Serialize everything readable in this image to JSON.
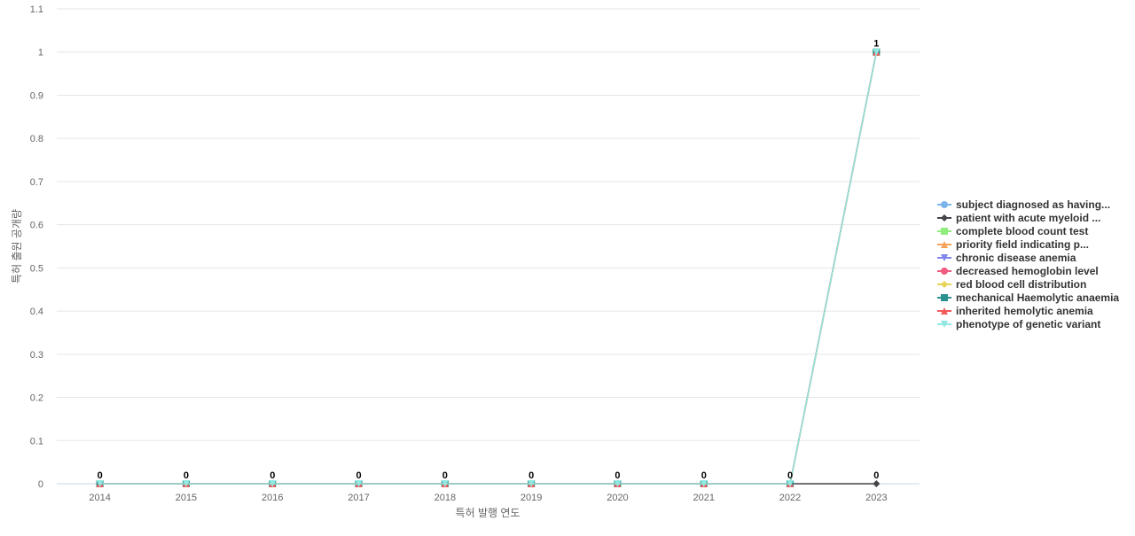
{
  "chart_data": {
    "type": "line",
    "xlabel": "특허 발행 연도",
    "ylabel": "특허 출원 공개량",
    "ylim": [
      0,
      1.1
    ],
    "yticks": [
      "0",
      "0.1",
      "0.2",
      "0.3",
      "0.4",
      "0.5",
      "0.6",
      "0.7",
      "0.8",
      "0.9",
      "1",
      "1.1"
    ],
    "grid": true,
    "legend_position": "right",
    "categories": [
      "2014",
      "2015",
      "2016",
      "2017",
      "2018",
      "2019",
      "2020",
      "2021",
      "2022",
      "2023"
    ],
    "series": [
      {
        "name": "subject diagnosed as having...",
        "color": "#7cb5ec",
        "marker": "circle",
        "values": [
          0,
          0,
          0,
          0,
          0,
          0,
          0,
          0,
          0,
          1
        ]
      },
      {
        "name": "patient with acute myeloid ...",
        "color": "#434348",
        "marker": "diamond",
        "values": [
          0,
          0,
          0,
          0,
          0,
          0,
          0,
          0,
          0,
          0
        ]
      },
      {
        "name": "complete blood count test",
        "color": "#90ed7d",
        "marker": "square",
        "values": [
          0,
          0,
          0,
          0,
          0,
          0,
          0,
          0,
          0,
          1
        ]
      },
      {
        "name": "priority field indicating p...",
        "color": "#f7a35c",
        "marker": "triangle",
        "values": [
          0,
          0,
          0,
          0,
          0,
          0,
          0,
          0,
          0,
          1
        ]
      },
      {
        "name": "chronic disease anemia",
        "color": "#8085e9",
        "marker": "triangle-down",
        "values": [
          0,
          0,
          0,
          0,
          0,
          0,
          0,
          0,
          0,
          1
        ]
      },
      {
        "name": "decreased hemoglobin level",
        "color": "#f15c80",
        "marker": "circle",
        "values": [
          0,
          0,
          0,
          0,
          0,
          0,
          0,
          0,
          0,
          1
        ]
      },
      {
        "name": "red blood cell distribution",
        "color": "#e4d354",
        "marker": "diamond",
        "values": [
          0,
          0,
          0,
          0,
          0,
          0,
          0,
          0,
          0,
          1
        ]
      },
      {
        "name": "mechanical Haemolytic anaemia",
        "color": "#2b908f",
        "marker": "square",
        "values": [
          0,
          0,
          0,
          0,
          0,
          0,
          0,
          0,
          0,
          1
        ]
      },
      {
        "name": "inherited hemolytic anemia",
        "color": "#f45b5b",
        "marker": "triangle",
        "values": [
          0,
          0,
          0,
          0,
          0,
          0,
          0,
          0,
          0,
          1
        ]
      },
      {
        "name": "phenotype of genetic variant",
        "color": "#91e8e1",
        "marker": "triangle-down",
        "values": [
          0,
          0,
          0,
          0,
          0,
          0,
          0,
          0,
          0,
          1
        ]
      }
    ],
    "data_labels": [
      "0",
      "0",
      "0",
      "0",
      "0",
      "0",
      "0",
      "0",
      "0",
      "1"
    ],
    "data_labels_secondary": {
      "2023": "0"
    }
  }
}
